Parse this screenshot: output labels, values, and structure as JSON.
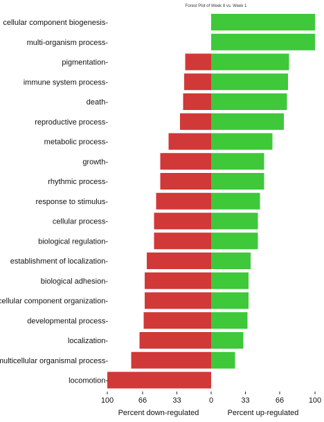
{
  "chart_data": {
    "type": "bar",
    "title": "Forest Plot of Week 8 vs. Week 1",
    "categories": [
      "cellular component biogenesis",
      "multi-organism process",
      "pigmentation",
      "immune system process",
      "death",
      "reproductive process",
      "metabolic process",
      "growth",
      "rhythmic process",
      "response to stimulus",
      "cellular process",
      "biological regulation",
      "establishment of localization",
      "biological adhesion",
      "cellular component organization",
      "developmental process",
      "localization",
      "multicellular organismal process",
      "locomotion"
    ],
    "series": [
      {
        "name": "Percent down-regulated",
        "color": "#d13838",
        "values": [
          0,
          0,
          25,
          26,
          27,
          30,
          41,
          49,
          49,
          53,
          55,
          55,
          62,
          64,
          64,
          65,
          69,
          77,
          100
        ]
      },
      {
        "name": "Percent up-regulated",
        "color": "#3ec83a",
        "values": [
          100,
          100,
          75,
          74,
          73,
          70,
          59,
          51,
          51,
          47,
          45,
          45,
          38,
          36,
          36,
          35,
          31,
          23,
          0
        ]
      }
    ],
    "xticks": [
      "100",
      "66",
      "33",
      "0",
      "33",
      "66",
      "100"
    ],
    "xlabel_left": "Percent down-regulated",
    "xlabel_right": "Percent up-regulated",
    "xlim": [
      -100,
      100
    ]
  }
}
